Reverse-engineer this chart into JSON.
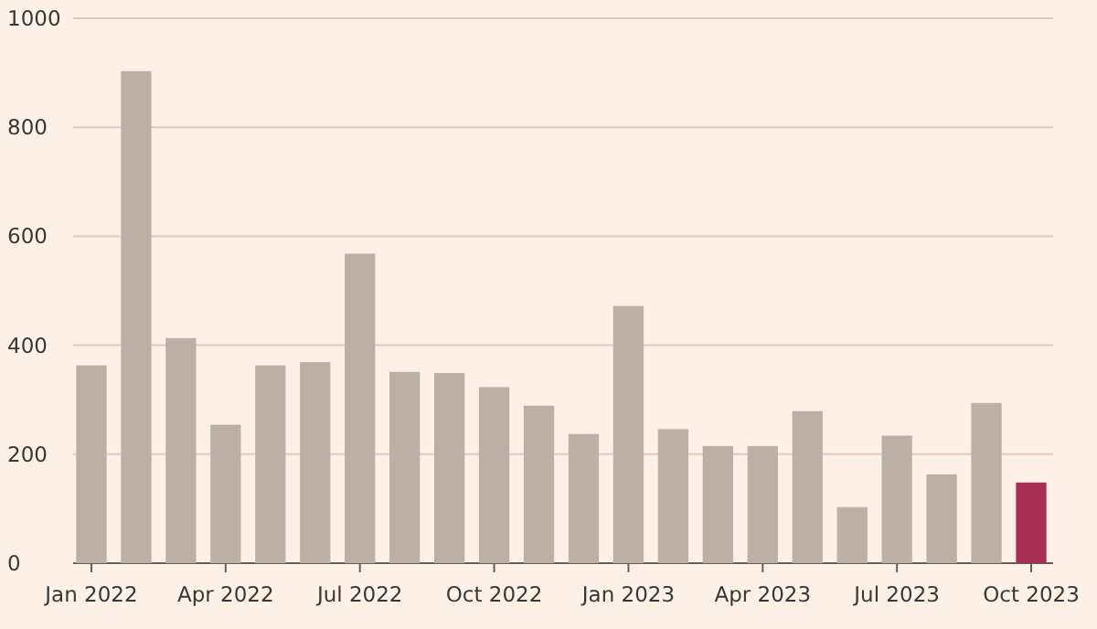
{
  "chart_data": {
    "type": "bar",
    "categories": [
      "Jan 2022",
      null,
      null,
      "Apr 2022",
      null,
      null,
      "Jul 2022",
      null,
      null,
      "Oct 2022",
      null,
      null,
      "Jan 2023",
      null,
      null,
      "Apr 2023",
      null,
      null,
      "Jul 2023",
      null,
      null,
      "Oct 2023"
    ],
    "values": [
      363,
      903,
      413,
      254,
      363,
      369,
      568,
      351,
      349,
      323,
      289,
      237,
      472,
      246,
      215,
      215,
      279,
      103,
      234,
      163,
      294,
      148
    ],
    "colors": [
      "#bcb0a6",
      "#bcb0a6",
      "#bcb0a6",
      "#bcb0a6",
      "#bcb0a6",
      "#bcb0a6",
      "#bcb0a6",
      "#bcb0a6",
      "#bcb0a6",
      "#bcb0a6",
      "#bcb0a6",
      "#bcb0a6",
      "#bcb0a6",
      "#bcb0a6",
      "#bcb0a6",
      "#bcb0a6",
      "#bcb0a6",
      "#bcb0a6",
      "#bcb0a6",
      "#bcb0a6",
      "#bcb0a6",
      "#a82d55"
    ],
    "ylim": [
      0,
      1000
    ],
    "yticks": [
      0,
      200,
      400,
      600,
      800,
      1000
    ],
    "grid": "y"
  }
}
